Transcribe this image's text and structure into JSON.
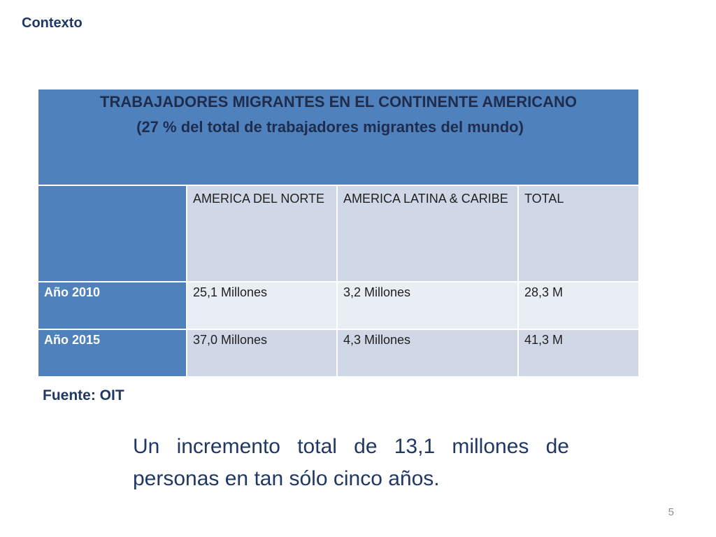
{
  "section_title": "Contexto",
  "table": {
    "title": "TRABAJADORES MIGRANTES EN EL CONTINENTE AMERICANO",
    "subtitle": "(27 % del total de trabajadores migrantes del mundo)",
    "columns": [
      "AMERICA DEL NORTE",
      "AMERICA LATINA & CARIBE",
      "TOTAL"
    ],
    "rows": [
      {
        "label": "Año 2010",
        "values": [
          "25,1 Millones",
          "3,2 Millones",
          "28,3 M"
        ]
      },
      {
        "label": "Año 2015",
        "values": [
          "37,0 Millones",
          "4,3 Millones",
          "41,3 M"
        ]
      }
    ]
  },
  "source": "Fuente: OIT",
  "summary": "Un incremento total de 13,1 millones de personas en tan sólo cinco años.",
  "page_number": "5",
  "colors": {
    "header_blue": "#4f81bd",
    "band_dark": "#d0d8e8",
    "band_light": "#e9edf4",
    "text_navy": "#1f3864"
  }
}
